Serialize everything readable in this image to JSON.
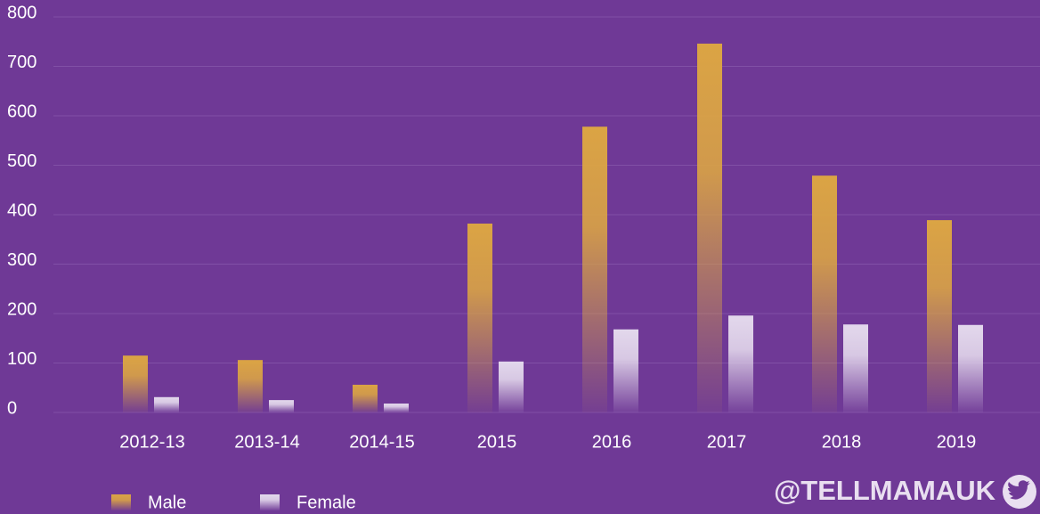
{
  "chart_data": {
    "type": "bar",
    "categories": [
      "2012-13",
      "2013-14",
      "2014-15",
      "2015",
      "2016",
      "2017",
      "2018",
      "2019"
    ],
    "series": [
      {
        "name": "Male",
        "color": "#dba444",
        "values": [
          115,
          106,
          56,
          382,
          578,
          746,
          479,
          389
        ]
      },
      {
        "name": "Female",
        "color": "#e3d8ec",
        "values": [
          31,
          25,
          18,
          103,
          168,
          196,
          178,
          177
        ]
      }
    ],
    "ylim": [
      0,
      800
    ],
    "yticks": [
      0,
      100,
      200,
      300,
      400,
      500,
      600,
      700,
      800
    ],
    "grid": true,
    "legend": "bottom-left",
    "watermark": "@TELLMAMAUK"
  }
}
